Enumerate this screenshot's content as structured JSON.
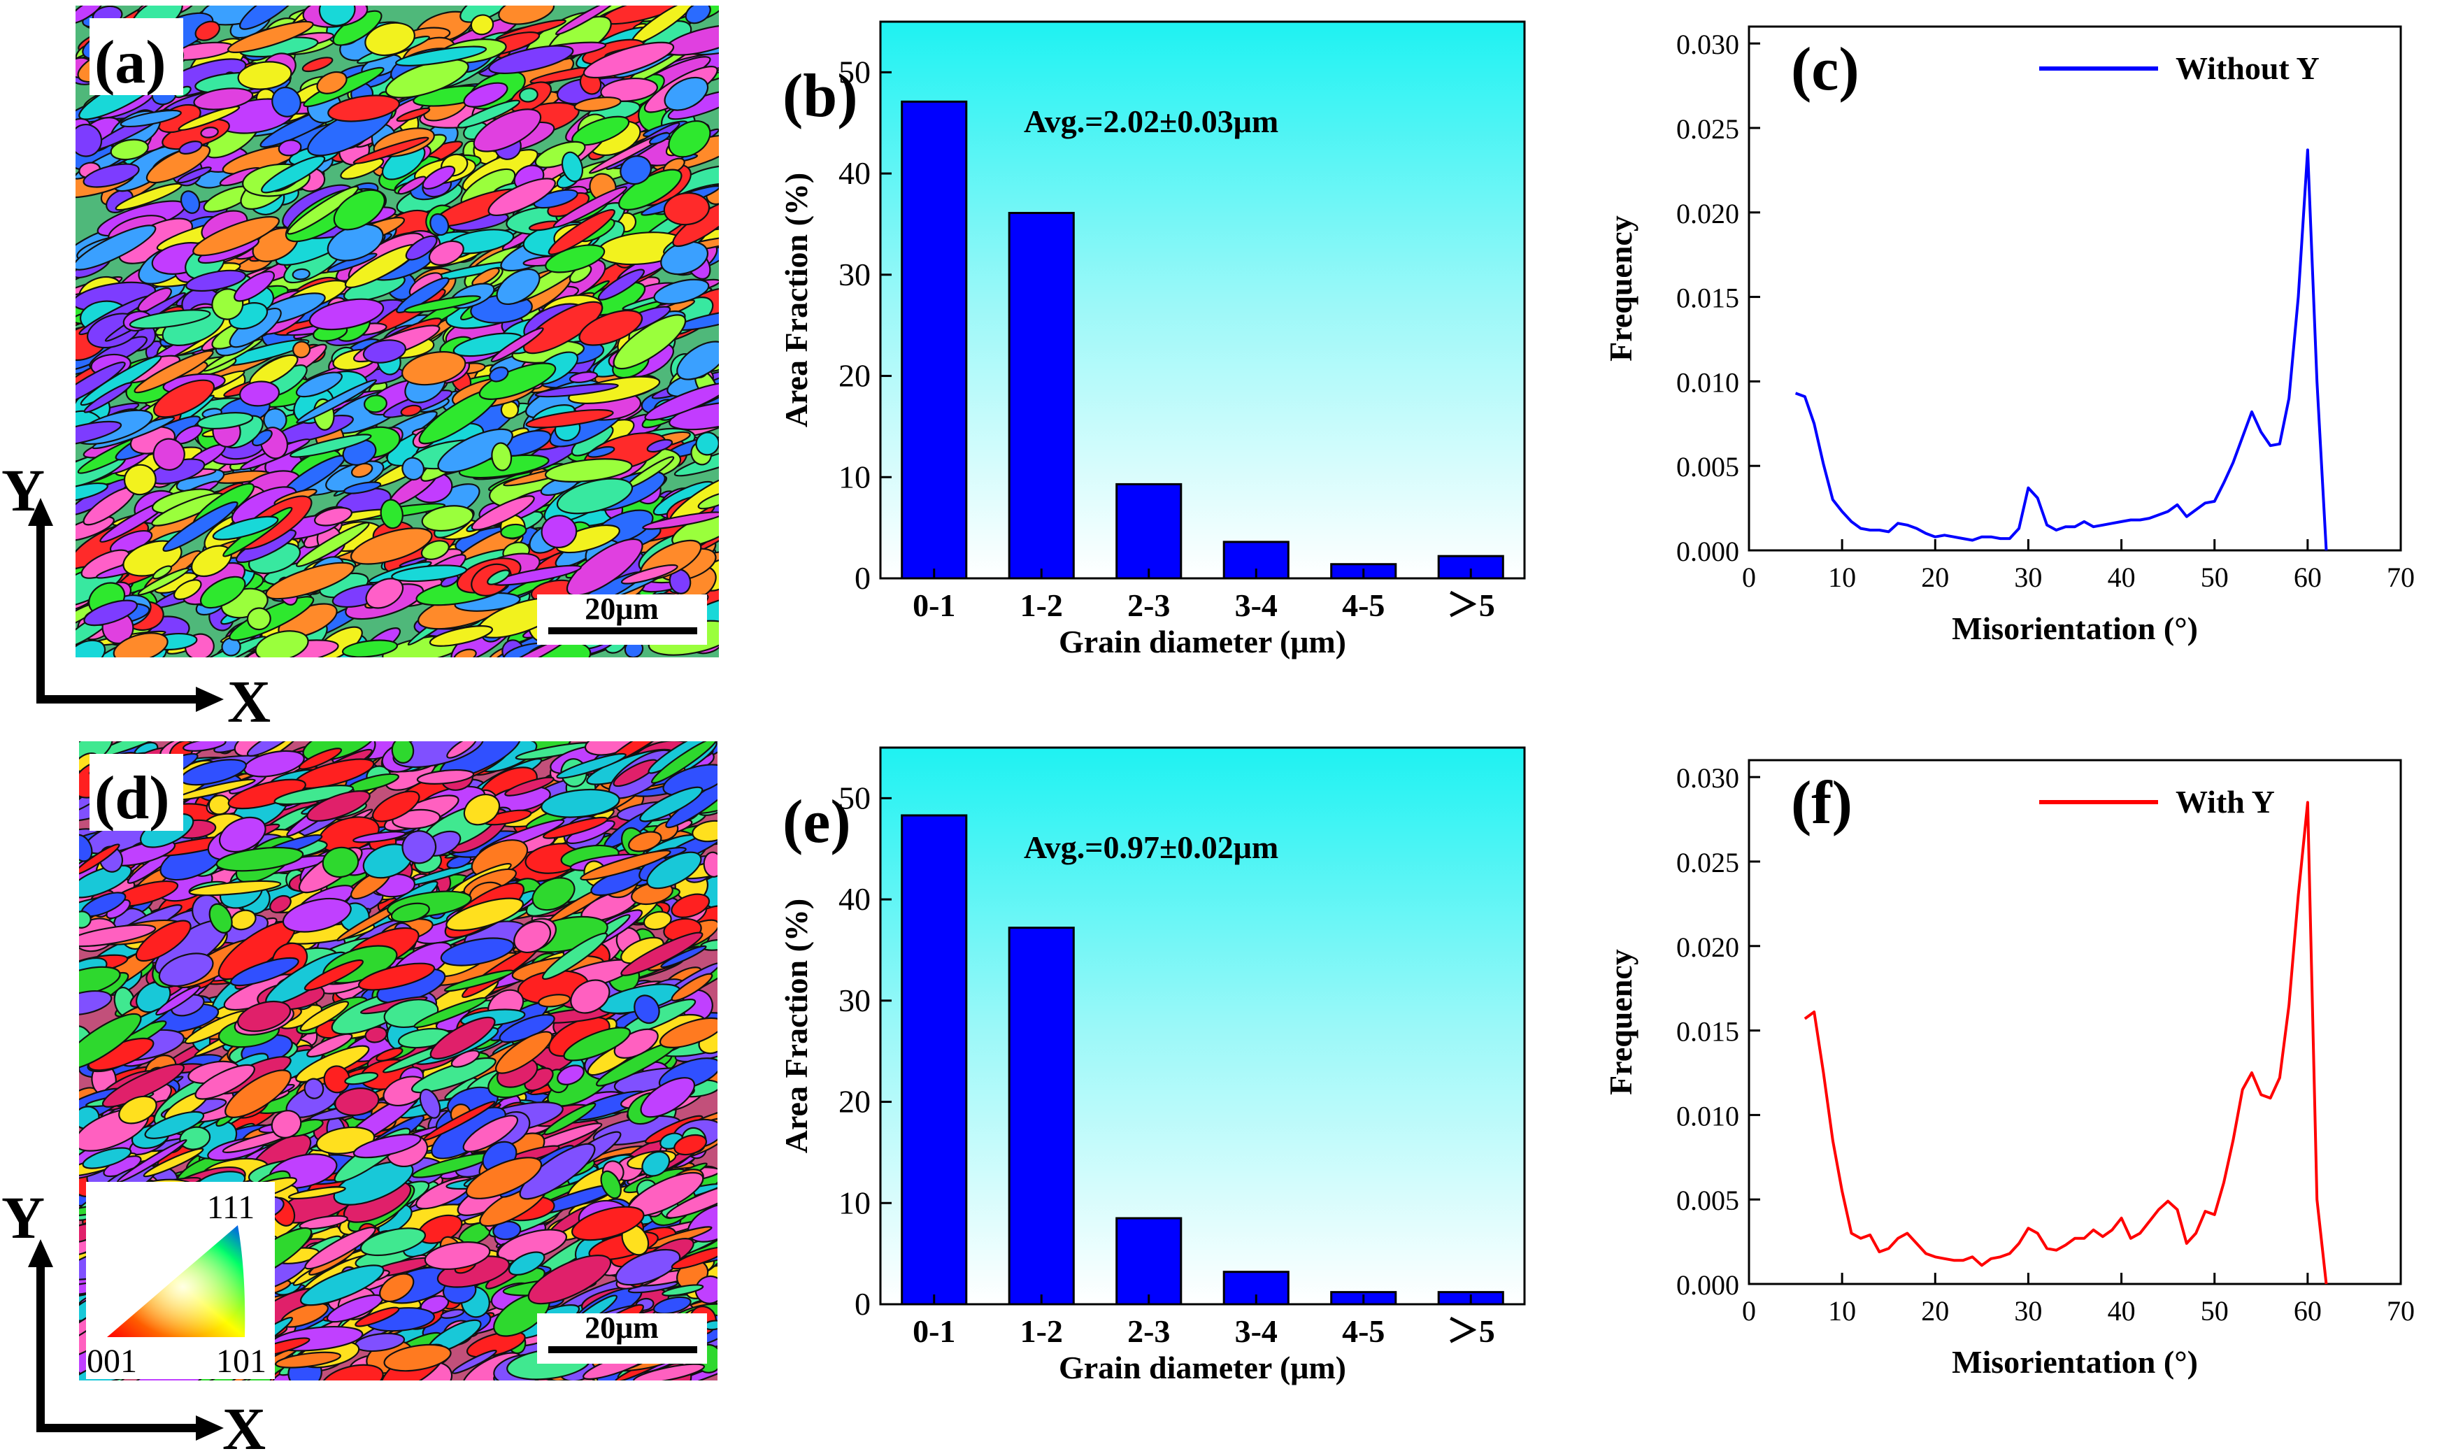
{
  "figure": {
    "panels": {
      "a": {
        "label": "(a)",
        "scale_bar": "20μm"
      },
      "d": {
        "label": "(d)",
        "scale_bar": "20μm"
      }
    },
    "axes_indicator": {
      "y_label": "Y",
      "x_label": "X"
    },
    "ipf_legend": {
      "top": "111",
      "bottom_left": "001",
      "bottom_right": "101"
    }
  },
  "chart_data": [
    {
      "panel": "b",
      "label": "(b)",
      "type": "bar",
      "categories": [
        "0-1",
        "1-2",
        "2-3",
        "3-4",
        "4-5",
        "＞5"
      ],
      "values": [
        47.1,
        36.1,
        9.3,
        3.6,
        1.4,
        2.2
      ],
      "annotation": "Avg.=2.02±0.03μm",
      "xlabel": "Grain diameter (μm)",
      "ylabel": "Area Fraction (%)",
      "ylim": [
        0,
        55
      ],
      "yticks": [
        "0",
        "10",
        "20",
        "30",
        "40",
        "50"
      ],
      "bar_color": "#0000ff"
    },
    {
      "panel": "c",
      "label": "(c)",
      "type": "line",
      "series": [
        {
          "name": "Without Y",
          "color": "#0000ff",
          "x": [
            5,
            6,
            7,
            8,
            9,
            10,
            11,
            12,
            13,
            14,
            15,
            16,
            17,
            18,
            19,
            20,
            21,
            22,
            23,
            24,
            25,
            26,
            27,
            28,
            29,
            30,
            31,
            32,
            33,
            34,
            35,
            36,
            37,
            38,
            39,
            40,
            41,
            42,
            43,
            44,
            45,
            46,
            47,
            48,
            49,
            50,
            51,
            52,
            53,
            54,
            55,
            56,
            57,
            58,
            59,
            60,
            61,
            62
          ],
          "y": [
            0.0093,
            0.0091,
            0.0075,
            0.0051,
            0.003,
            0.0023,
            0.0017,
            0.0013,
            0.0012,
            0.0012,
            0.0011,
            0.0016,
            0.0015,
            0.0013,
            0.001,
            0.0008,
            0.0009,
            0.0008,
            0.0007,
            0.0006,
            0.0008,
            0.0008,
            0.0007,
            0.0007,
            0.0013,
            0.0037,
            0.0031,
            0.0015,
            0.0012,
            0.0014,
            0.0014,
            0.0017,
            0.0014,
            0.0015,
            0.0016,
            0.0017,
            0.0018,
            0.0018,
            0.0019,
            0.0021,
            0.0023,
            0.0027,
            0.002,
            0.0024,
            0.0028,
            0.0029,
            0.004,
            0.0052,
            0.0067,
            0.0082,
            0.007,
            0.0062,
            0.0063,
            0.009,
            0.015,
            0.0237,
            0.01,
            0.0
          ]
        }
      ],
      "xlabel": "Misorientation (°)",
      "ylabel": "Frequency",
      "xlim": [
        0,
        70
      ],
      "ylim": [
        0,
        0.031
      ],
      "xticks": [
        "0",
        "10",
        "20",
        "30",
        "40",
        "50",
        "60",
        "70"
      ],
      "yticks": [
        "0.000",
        "0.005",
        "0.010",
        "0.015",
        "0.020",
        "0.025",
        "0.030"
      ]
    },
    {
      "panel": "e",
      "label": "(e)",
      "type": "bar",
      "categories": [
        "0-1",
        "1-2",
        "2-3",
        "3-4",
        "4-5",
        "＞5"
      ],
      "values": [
        48.3,
        37.2,
        8.5,
        3.2,
        1.2,
        1.2
      ],
      "annotation": "Avg.=0.97±0.02μm",
      "xlabel": "Grain diameter (μm)",
      "ylabel": "Area Fraction (%)",
      "ylim": [
        0,
        55
      ],
      "yticks": [
        "0",
        "10",
        "20",
        "30",
        "40",
        "50"
      ],
      "bar_color": "#0000ff"
    },
    {
      "panel": "f",
      "label": "(f)",
      "type": "line",
      "series": [
        {
          "name": "With Y",
          "color": "#ff0000",
          "x": [
            6,
            7,
            8,
            9,
            10,
            11,
            12,
            13,
            14,
            15,
            16,
            17,
            18,
            19,
            20,
            21,
            22,
            23,
            24,
            25,
            26,
            27,
            28,
            29,
            30,
            31,
            32,
            33,
            34,
            35,
            36,
            37,
            38,
            39,
            40,
            41,
            42,
            43,
            44,
            45,
            46,
            47,
            48,
            49,
            50,
            51,
            52,
            53,
            54,
            55,
            56,
            57,
            58,
            59,
            60,
            61,
            62
          ],
          "y": [
            0.0157,
            0.0161,
            0.0125,
            0.0085,
            0.0055,
            0.003,
            0.0027,
            0.0029,
            0.0019,
            0.0021,
            0.0027,
            0.003,
            0.0024,
            0.0018,
            0.0016,
            0.0015,
            0.0014,
            0.0014,
            0.0016,
            0.0011,
            0.0015,
            0.0016,
            0.0018,
            0.0024,
            0.0033,
            0.003,
            0.0021,
            0.002,
            0.0023,
            0.0027,
            0.0027,
            0.0032,
            0.0028,
            0.0032,
            0.0039,
            0.0027,
            0.003,
            0.0037,
            0.0044,
            0.0049,
            0.0044,
            0.0024,
            0.003,
            0.0043,
            0.0041,
            0.006,
            0.0085,
            0.0115,
            0.0125,
            0.0112,
            0.011,
            0.0122,
            0.0165,
            0.023,
            0.0285,
            0.005,
            0.0
          ]
        }
      ],
      "xlabel": "Misorientation (°)",
      "ylabel": "Frequency",
      "xlim": [
        0,
        70
      ],
      "ylim": [
        0,
        0.031
      ],
      "xticks": [
        "0",
        "10",
        "20",
        "30",
        "40",
        "50",
        "60",
        "70"
      ],
      "yticks": [
        "0.000",
        "0.005",
        "0.010",
        "0.015",
        "0.020",
        "0.025",
        "0.030"
      ]
    }
  ]
}
